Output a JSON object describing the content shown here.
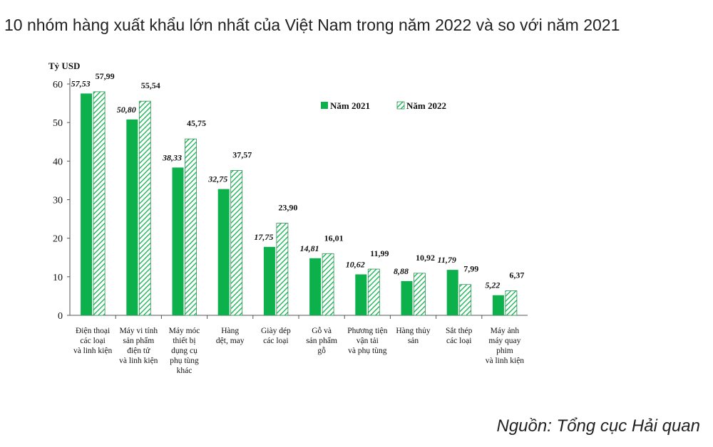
{
  "title": "10 nhóm hàng xuất khẩu lớn nhất của Việt Nam trong năm 2022 và so với năm 2021",
  "source": "Nguồn: Tổng cục Hải quan",
  "colors": {
    "y2021": "#0db14b",
    "y2022": "#0db14b",
    "axis": "#555555"
  },
  "chart_data": {
    "type": "bar",
    "ylabel": "Tỷ USD",
    "ylim": [
      0,
      60
    ],
    "yticks": [
      0,
      10,
      20,
      30,
      40,
      50,
      60
    ],
    "legend_position": "top-right",
    "categories": [
      [
        "Điện thoại",
        "các loại",
        "và linh kiện"
      ],
      [
        "Máy vi tính",
        "sản phẩm",
        "điện tử",
        "và linh kiện"
      ],
      [
        "Máy móc",
        "thiết bị",
        "dụng cụ",
        "phụ tùng",
        "khác"
      ],
      [
        "Hàng",
        "dệt, may"
      ],
      [
        "Giày dép",
        "các loại"
      ],
      [
        "Gỗ và",
        "sản phẩm",
        "gỗ"
      ],
      [
        "Phương tiện",
        "vận tải",
        "và phụ tùng"
      ],
      [
        "Hàng thủy",
        "sản"
      ],
      [
        "Sắt thép",
        "các loại"
      ],
      [
        "Máy ảnh",
        "máy quay",
        "phim",
        "và linh kiện"
      ]
    ],
    "series": [
      {
        "name": "Năm 2021",
        "values": [
          57.53,
          50.8,
          38.33,
          32.75,
          17.75,
          14.81,
          10.62,
          8.88,
          11.79,
          5.22
        ],
        "labels": [
          "57,53",
          "50,80",
          "38,33",
          "32,75",
          "17,75",
          "14,81",
          "10,62",
          "8,88",
          "11,79",
          "5,22"
        ]
      },
      {
        "name": "Năm 2022",
        "values": [
          57.99,
          55.54,
          45.75,
          37.57,
          23.9,
          16.01,
          11.99,
          10.92,
          7.99,
          6.37
        ],
        "labels": [
          "57,99",
          "55,54",
          "45,75",
          "37,57",
          "23,90",
          "16,01",
          "11,99",
          "10,92",
          "7,99",
          "6,37"
        ]
      }
    ]
  }
}
